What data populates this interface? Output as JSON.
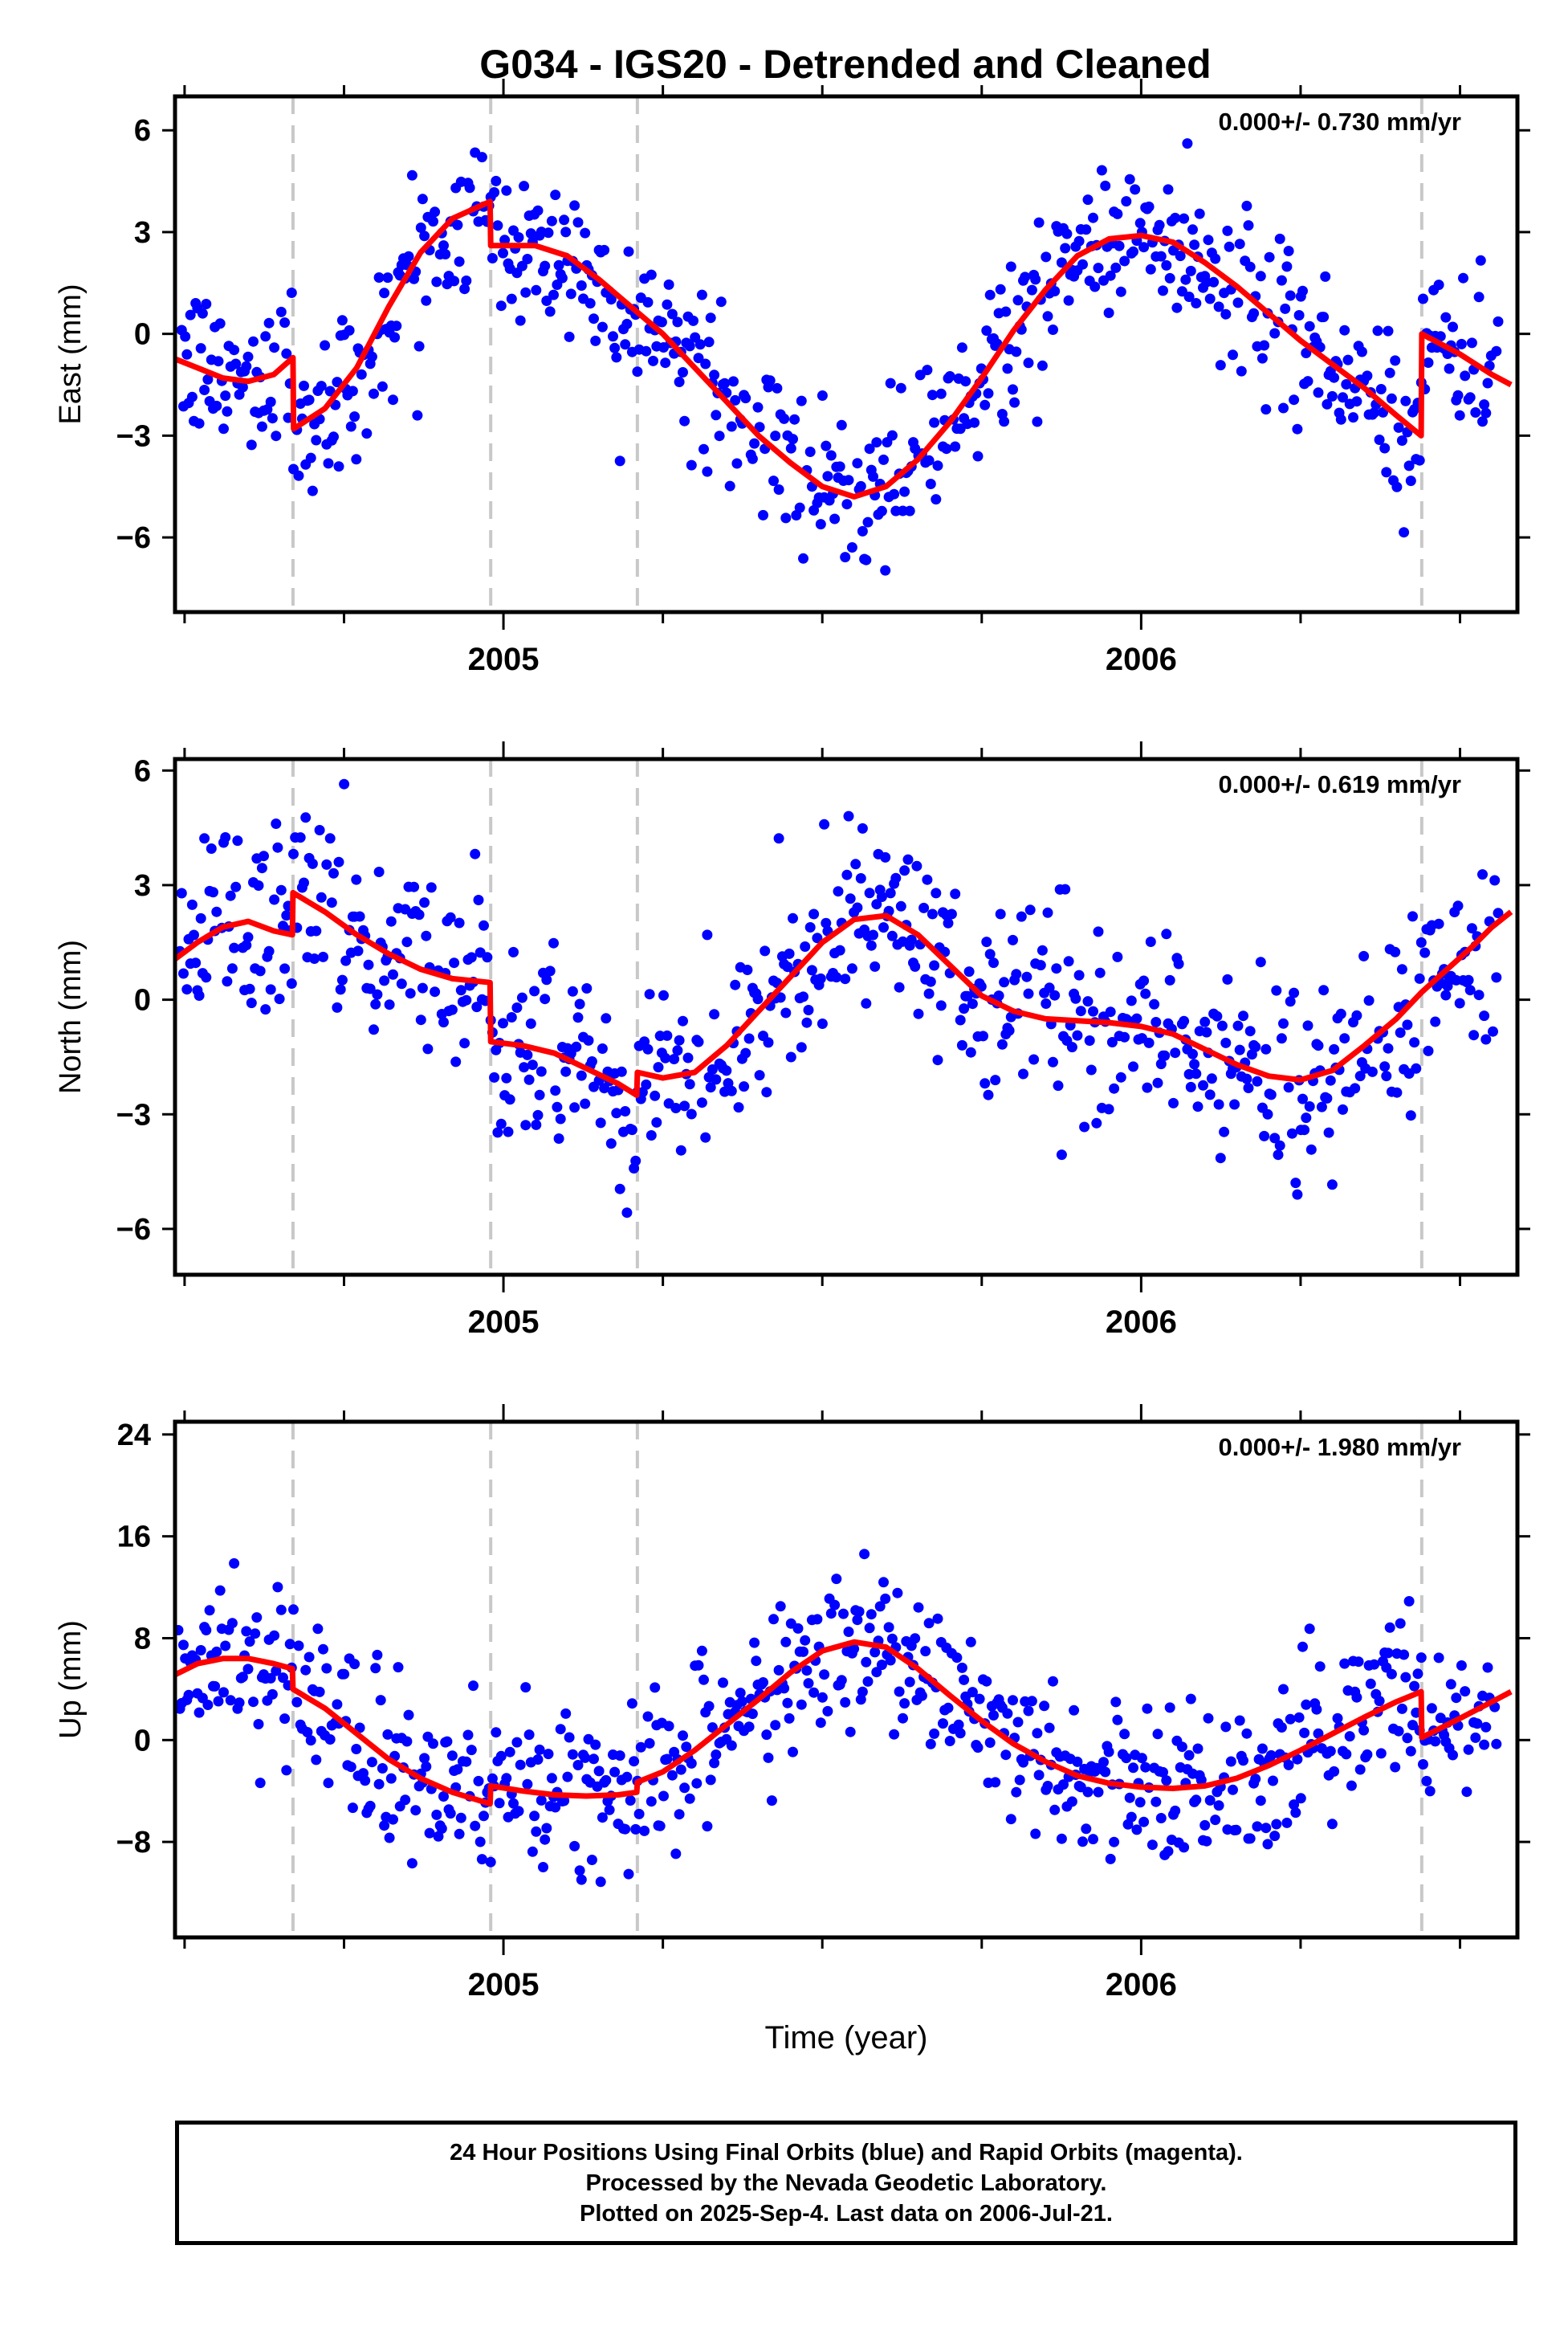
{
  "title": "G034 - IGS20 - Detrended and Cleaned",
  "colors": {
    "data": "#0000ff",
    "model": "#ff0000",
    "breaks": "#c8c8c8",
    "frame": "#000000"
  },
  "chart_data": [
    {
      "type": "scatter",
      "component": "East",
      "ylabel": "East (mm)",
      "rate_label": "0.000+/- 0.730 mm/yr",
      "ylim": [
        -8.2,
        7.0
      ],
      "yticks": [
        -6,
        -3,
        0,
        3,
        6
      ],
      "xlim": [
        2004.485,
        2006.59
      ],
      "xticks": [
        2005,
        2006
      ],
      "xlabel": "",
      "breaks": [
        2004.67,
        2004.98,
        2005.21,
        2006.44
      ],
      "noise_sd": 1.15,
      "model": [
        [
          2004.48,
          -0.7
        ],
        [
          2004.52,
          -1.0
        ],
        [
          2004.56,
          -1.3
        ],
        [
          2004.6,
          -1.4
        ],
        [
          2004.64,
          -1.2
        ],
        [
          2004.67,
          -0.7
        ],
        [
          2004.671,
          -2.8
        ],
        [
          2004.72,
          -2.2
        ],
        [
          2004.77,
          -1.0
        ],
        [
          2004.82,
          0.8
        ],
        [
          2004.87,
          2.4
        ],
        [
          2004.92,
          3.4
        ],
        [
          2004.979,
          3.9
        ],
        [
          2004.98,
          2.6
        ],
        [
          2005.05,
          2.6
        ],
        [
          2005.1,
          2.3
        ],
        [
          2005.15,
          1.6
        ],
        [
          2005.2,
          0.8
        ],
        [
          2005.25,
          0.0
        ],
        [
          2005.3,
          -1.0
        ],
        [
          2005.35,
          -2.0
        ],
        [
          2005.4,
          -3.0
        ],
        [
          2005.45,
          -3.8
        ],
        [
          2005.5,
          -4.5
        ],
        [
          2005.55,
          -4.8
        ],
        [
          2005.6,
          -4.5
        ],
        [
          2005.65,
          -3.7
        ],
        [
          2005.7,
          -2.6
        ],
        [
          2005.75,
          -1.3
        ],
        [
          2005.8,
          0.1
        ],
        [
          2005.85,
          1.3
        ],
        [
          2005.9,
          2.3
        ],
        [
          2005.95,
          2.8
        ],
        [
          2006.0,
          2.9
        ],
        [
          2006.05,
          2.7
        ],
        [
          2006.1,
          2.1
        ],
        [
          2006.15,
          1.4
        ],
        [
          2006.2,
          0.6
        ],
        [
          2006.25,
          -0.2
        ],
        [
          2006.3,
          -0.9
        ],
        [
          2006.35,
          -1.6
        ],
        [
          2006.4,
          -2.4
        ],
        [
          2006.439,
          -3.0
        ],
        [
          2006.44,
          0.0
        ],
        [
          2006.5,
          -0.6
        ],
        [
          2006.55,
          -1.2
        ],
        [
          2006.58,
          -1.5
        ]
      ]
    },
    {
      "type": "scatter",
      "component": "North",
      "ylabel": "North (mm)",
      "rate_label": "0.000+/- 0.619 mm/yr",
      "ylim": [
        -7.2,
        6.3
      ],
      "yticks": [
        -6,
        -3,
        0,
        3,
        6
      ],
      "xlim": [
        2004.485,
        2006.59
      ],
      "xticks": [
        2005,
        2006
      ],
      "xlabel": "",
      "breaks": [
        2004.67,
        2004.98,
        2005.21,
        2006.44
      ],
      "noise_sd": 1.3,
      "model": [
        [
          2004.48,
          1.0
        ],
        [
          2004.52,
          1.5
        ],
        [
          2004.56,
          1.9
        ],
        [
          2004.6,
          2.05
        ],
        [
          2004.64,
          1.8
        ],
        [
          2004.669,
          1.7
        ],
        [
          2004.67,
          2.8
        ],
        [
          2004.72,
          2.3
        ],
        [
          2004.77,
          1.7
        ],
        [
          2004.82,
          1.2
        ],
        [
          2004.87,
          0.8
        ],
        [
          2004.92,
          0.55
        ],
        [
          2004.979,
          0.45
        ],
        [
          2004.98,
          -1.1
        ],
        [
          2005.03,
          -1.2
        ],
        [
          2005.08,
          -1.4
        ],
        [
          2005.13,
          -1.8
        ],
        [
          2005.18,
          -2.2
        ],
        [
          2005.209,
          -2.5
        ],
        [
          2005.21,
          -1.9
        ],
        [
          2005.25,
          -2.05
        ],
        [
          2005.3,
          -1.9
        ],
        [
          2005.35,
          -1.2
        ],
        [
          2005.4,
          -0.3
        ],
        [
          2005.45,
          0.6
        ],
        [
          2005.5,
          1.5
        ],
        [
          2005.55,
          2.1
        ],
        [
          2005.6,
          2.2
        ],
        [
          2005.65,
          1.7
        ],
        [
          2005.7,
          0.9
        ],
        [
          2005.75,
          0.1
        ],
        [
          2005.8,
          -0.3
        ],
        [
          2005.85,
          -0.5
        ],
        [
          2005.9,
          -0.55
        ],
        [
          2005.95,
          -0.6
        ],
        [
          2006.0,
          -0.7
        ],
        [
          2006.05,
          -0.9
        ],
        [
          2006.1,
          -1.3
        ],
        [
          2006.15,
          -1.7
        ],
        [
          2006.2,
          -2.0
        ],
        [
          2006.25,
          -2.1
        ],
        [
          2006.3,
          -1.85
        ],
        [
          2006.35,
          -1.2
        ],
        [
          2006.4,
          -0.5
        ],
        [
          2006.44,
          0.2
        ],
        [
          2006.48,
          0.8
        ],
        [
          2006.52,
          1.4
        ],
        [
          2006.55,
          1.9
        ],
        [
          2006.58,
          2.3
        ]
      ]
    },
    {
      "type": "scatter",
      "component": "Up",
      "ylabel": "Up (mm)",
      "rate_label": "0.000+/- 1.980 mm/yr",
      "ylim": [
        -15.5,
        25
      ],
      "yticks": [
        -8,
        0,
        8,
        16,
        24
      ],
      "xlim": [
        2004.485,
        2006.59
      ],
      "xticks": [
        2005,
        2006
      ],
      "xlabel": "Time (year)",
      "breaks": [
        2004.67,
        2004.98,
        2005.21,
        2006.44
      ],
      "noise_sd": 3.4,
      "model": [
        [
          2004.48,
          5.0
        ],
        [
          2004.52,
          6.0
        ],
        [
          2004.56,
          6.4
        ],
        [
          2004.6,
          6.4
        ],
        [
          2004.64,
          6.0
        ],
        [
          2004.669,
          5.6
        ],
        [
          2004.67,
          4.0
        ],
        [
          2004.72,
          2.5
        ],
        [
          2004.77,
          0.5
        ],
        [
          2004.82,
          -1.5
        ],
        [
          2004.87,
          -3.0
        ],
        [
          2004.92,
          -4.1
        ],
        [
          2004.979,
          -5.0
        ],
        [
          2004.98,
          -3.6
        ],
        [
          2005.03,
          -4.0
        ],
        [
          2005.08,
          -4.3
        ],
        [
          2005.13,
          -4.4
        ],
        [
          2005.18,
          -4.3
        ],
        [
          2005.209,
          -4.1
        ],
        [
          2005.21,
          -3.3
        ],
        [
          2005.25,
          -2.5
        ],
        [
          2005.3,
          -0.8
        ],
        [
          2005.35,
          1.2
        ],
        [
          2005.4,
          3.2
        ],
        [
          2005.45,
          5.3
        ],
        [
          2005.5,
          7.0
        ],
        [
          2005.55,
          7.7
        ],
        [
          2005.6,
          7.3
        ],
        [
          2005.65,
          5.6
        ],
        [
          2005.7,
          3.5
        ],
        [
          2005.75,
          1.5
        ],
        [
          2005.8,
          -0.3
        ],
        [
          2005.85,
          -1.7
        ],
        [
          2005.9,
          -2.8
        ],
        [
          2005.95,
          -3.4
        ],
        [
          2006.0,
          -3.7
        ],
        [
          2006.05,
          -3.8
        ],
        [
          2006.1,
          -3.6
        ],
        [
          2006.15,
          -3.0
        ],
        [
          2006.2,
          -2.0
        ],
        [
          2006.25,
          -0.8
        ],
        [
          2006.3,
          0.5
        ],
        [
          2006.35,
          1.8
        ],
        [
          2006.4,
          3.0
        ],
        [
          2006.439,
          3.8
        ],
        [
          2006.44,
          0.2
        ],
        [
          2006.5,
          1.7
        ],
        [
          2006.55,
          3.0
        ],
        [
          2006.58,
          3.8
        ]
      ]
    }
  ],
  "footer": {
    "line1": "24 Hour Positions Using Final Orbits (blue) and Rapid Orbits (magenta).",
    "line2": "Processed by the Nevada Geodetic Laboratory.",
    "line3": "Plotted on 2025-Sep-4. Last data on 2006-Jul-21."
  }
}
